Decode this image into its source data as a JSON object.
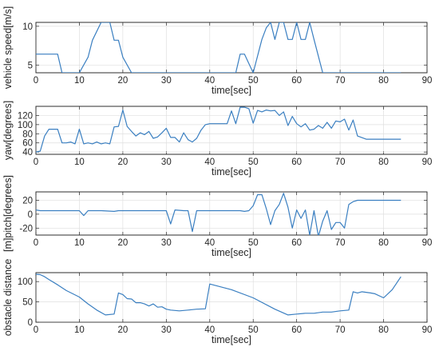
{
  "colors": {
    "series": "#3a7fc1",
    "axis": "#262626",
    "grid": "#dfdfdf"
  },
  "chart_data": [
    {
      "type": "line",
      "xlabel": "time[sec]",
      "ylabel": "vehicle speed[m/s]",
      "xlim": [
        0,
        90
      ],
      "ylim": [
        4,
        10.5
      ],
      "xticks": [
        0,
        10,
        20,
        30,
        40,
        50,
        60,
        70,
        80,
        90
      ],
      "yticks": [
        5,
        10
      ],
      "grid": true,
      "series": [
        {
          "x": [
            0,
            5,
            6,
            10,
            12,
            13,
            15,
            17,
            18,
            19,
            20,
            22,
            24,
            28,
            30,
            40,
            46,
            47,
            48,
            50,
            52,
            53,
            54,
            55,
            56,
            57,
            58,
            59,
            60,
            61,
            62,
            63,
            64,
            66,
            70,
            80,
            84
          ],
          "y": [
            6.4,
            6.4,
            4,
            4,
            6,
            8.2,
            10.5,
            10.5,
            8.2,
            8.2,
            6,
            4,
            4,
            4,
            4,
            4,
            4,
            6.4,
            6.4,
            4,
            8.3,
            9.8,
            10.5,
            8.3,
            10.5,
            10.5,
            8.3,
            8.3,
            10.5,
            8.3,
            8.3,
            10.5,
            8.3,
            4,
            4,
            4,
            4
          ]
        }
      ]
    },
    {
      "type": "line",
      "xlabel": "time[sec]",
      "ylabel": "yaw[degrees]",
      "xlim": [
        0,
        90
      ],
      "ylim": [
        35,
        140
      ],
      "xticks": [
        0,
        10,
        20,
        30,
        40,
        50,
        60,
        70,
        80,
        90
      ],
      "yticks": [
        40,
        60,
        80,
        100,
        120
      ],
      "grid": true,
      "series": [
        {
          "x": [
            0,
            1,
            2,
            3,
            5,
            6,
            7,
            8,
            9,
            10,
            11,
            12,
            13,
            14,
            15,
            16,
            17,
            18,
            19,
            20,
            21,
            22,
            23,
            24,
            25,
            26,
            27,
            28,
            29,
            30,
            31,
            32,
            33,
            34,
            35,
            36,
            37,
            38,
            39,
            40,
            41,
            42,
            43,
            44,
            45,
            46,
            47,
            48,
            49,
            50,
            51,
            52,
            53,
            54,
            55,
            56,
            57,
            58,
            59,
            60,
            61,
            62,
            63,
            64,
            65,
            66,
            67,
            68,
            69,
            70,
            71,
            72,
            73,
            74,
            76,
            80,
            84
          ],
          "y": [
            40,
            42,
            75,
            90,
            90,
            60,
            60,
            62,
            58,
            90,
            58,
            60,
            58,
            62,
            58,
            60,
            58,
            95,
            96,
            132,
            96,
            85,
            75,
            82,
            78,
            85,
            70,
            73,
            82,
            92,
            72,
            72,
            62,
            82,
            67,
            62,
            70,
            88,
            100,
            102,
            102,
            102,
            102,
            102,
            130,
            102,
            138,
            138,
            135,
            103,
            131,
            128,
            132,
            130,
            131,
            120,
            128,
            98,
            118,
            102,
            95,
            102,
            88,
            90,
            98,
            92,
            105,
            92,
            108,
            106,
            112,
            88,
            110,
            75,
            68,
            68,
            68
          ]
        }
      ]
    },
    {
      "type": "line",
      "xlabel": "time[sec]",
      "ylabel": "[m]pitch[degrees]",
      "xlim": [
        0,
        90
      ],
      "ylim": [
        -30,
        32
      ],
      "xticks": [
        0,
        10,
        20,
        30,
        40,
        50,
        60,
        70,
        80,
        90
      ],
      "yticks": [
        -20,
        0,
        20
      ],
      "grid": true,
      "series": [
        {
          "x": [
            0,
            1,
            5,
            10,
            11,
            12,
            15,
            18,
            19,
            20,
            25,
            30,
            31,
            32,
            34,
            35,
            36,
            37,
            40,
            44,
            45,
            46,
            47,
            48,
            49,
            50,
            51,
            52,
            53,
            54,
            55,
            56,
            57,
            58,
            59,
            60,
            61,
            62,
            63,
            64,
            65,
            66,
            67,
            68,
            69,
            70,
            71,
            72,
            73,
            74,
            76,
            80,
            84
          ],
          "y": [
            6,
            5,
            5,
            5,
            -2,
            5,
            5,
            4,
            5,
            5,
            5,
            5,
            -14,
            6,
            5,
            5,
            -25,
            5,
            5,
            5,
            5,
            5,
            5,
            4,
            5,
            12,
            28,
            28,
            8,
            -15,
            5,
            14,
            30,
            10,
            -20,
            6,
            -6,
            6,
            -30,
            5,
            -32,
            -10,
            5,
            -22,
            -12,
            -12,
            -20,
            14,
            18,
            20,
            20,
            20,
            20
          ]
        }
      ]
    },
    {
      "type": "line",
      "xlabel": "time[sec]",
      "ylabel": "obstacle distance",
      "xlim": [
        0,
        90
      ],
      "ylim": [
        0,
        122
      ],
      "xticks": [
        0,
        10,
        20,
        30,
        40,
        50,
        60,
        70,
        80,
        90
      ],
      "yticks": [
        0,
        50,
        100
      ],
      "grid": true,
      "series": [
        {
          "x": [
            0,
            1,
            2,
            3,
            5,
            7,
            10,
            12,
            14,
            16,
            18,
            19,
            20,
            21,
            22,
            23,
            24,
            25,
            26,
            27,
            28,
            29,
            30,
            31,
            33,
            35,
            37,
            39,
            40,
            45,
            50,
            55,
            58,
            60,
            62,
            64,
            66,
            68,
            70,
            72,
            73,
            74,
            75,
            77,
            78,
            80,
            82,
            84
          ],
          "y": [
            118,
            117,
            112,
            105,
            92,
            78,
            62,
            45,
            30,
            18,
            20,
            72,
            68,
            58,
            57,
            48,
            48,
            45,
            40,
            45,
            37,
            38,
            32,
            30,
            28,
            30,
            32,
            33,
            94,
            80,
            60,
            32,
            18,
            20,
            22,
            22,
            25,
            25,
            28,
            30,
            75,
            72,
            75,
            72,
            70,
            60,
            80,
            112
          ]
        }
      ]
    }
  ]
}
